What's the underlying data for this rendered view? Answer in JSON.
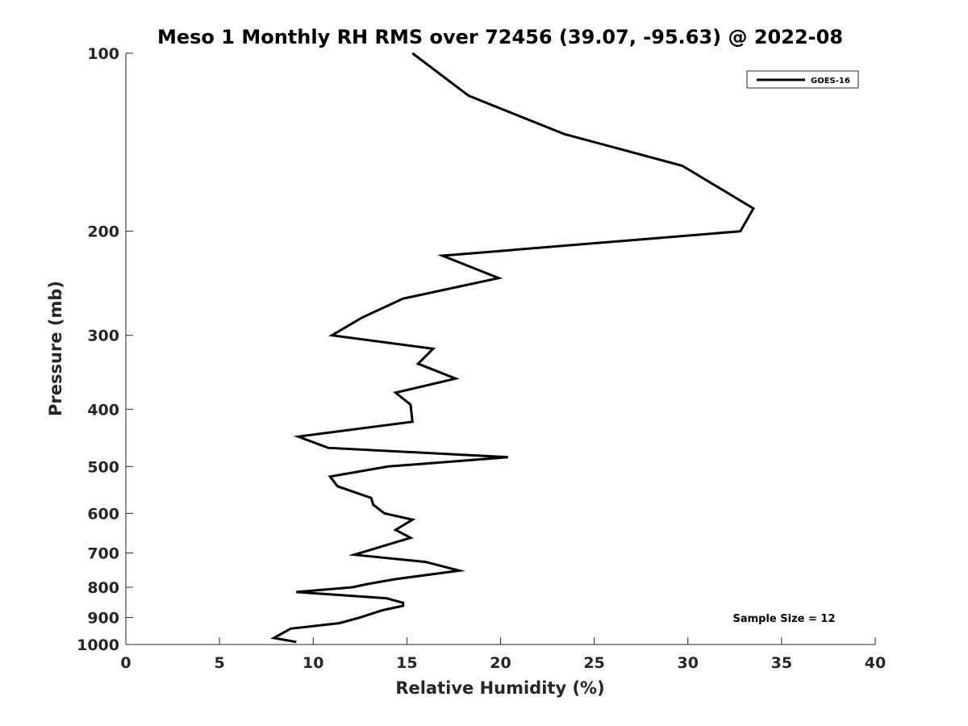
{
  "chart_data": {
    "type": "line",
    "title": "Meso 1 Monthly RH RMS over 72456 (39.07, -95.63) @ 2022-08",
    "xlabel": "Relative Humidity (%)",
    "ylabel": "Pressure (mb)",
    "xlim": [
      0,
      40
    ],
    "ylim": [
      1000,
      100
    ],
    "yscale": "log",
    "yaxis_reversed": true,
    "grid": false,
    "legend_position": "top-right",
    "xticks": [
      0,
      5,
      10,
      15,
      20,
      25,
      30,
      35,
      40
    ],
    "xtick_labels": [
      "0",
      "5",
      "10",
      "15",
      "20",
      "25",
      "30",
      "35",
      "40"
    ],
    "yticks": [
      100,
      200,
      300,
      400,
      500,
      600,
      700,
      800,
      900,
      1000
    ],
    "ytick_labels": [
      "100",
      "200",
      "300",
      "400",
      "500",
      "600",
      "700",
      "800",
      "900",
      "1000"
    ],
    "series": [
      {
        "name": "GOES-16",
        "color": "#000000",
        "x": [
          15.3,
          18.3,
          23.4,
          29.7,
          33.5,
          32.8,
          16.9,
          19.9,
          14.8,
          12.6,
          11.0,
          16.4,
          15.6,
          17.6,
          14.4,
          15.2,
          15.3,
          9.2,
          10.8,
          20.4,
          14.0,
          10.9,
          11.3,
          13.1,
          13.2,
          13.8,
          15.3,
          14.4,
          15.2,
          12.2,
          16.0,
          17.8,
          14.4,
          12.9,
          12.1,
          9.1,
          13.9,
          14.8,
          14.8,
          13.7,
          12.5,
          11.4,
          8.8,
          7.9,
          9.1
        ],
        "y": [
          100,
          118,
          137,
          155,
          183,
          200,
          220,
          240,
          260,
          280,
          300,
          316,
          335,
          355,
          375,
          393,
          420,
          445,
          465,
          482,
          500,
          520,
          540,
          565,
          580,
          600,
          615,
          640,
          660,
          705,
          725,
          750,
          775,
          790,
          800,
          815,
          835,
          850,
          860,
          875,
          900,
          920,
          940,
          975,
          990
        ]
      }
    ],
    "annotations": [
      "Sample Size = 12"
    ]
  }
}
